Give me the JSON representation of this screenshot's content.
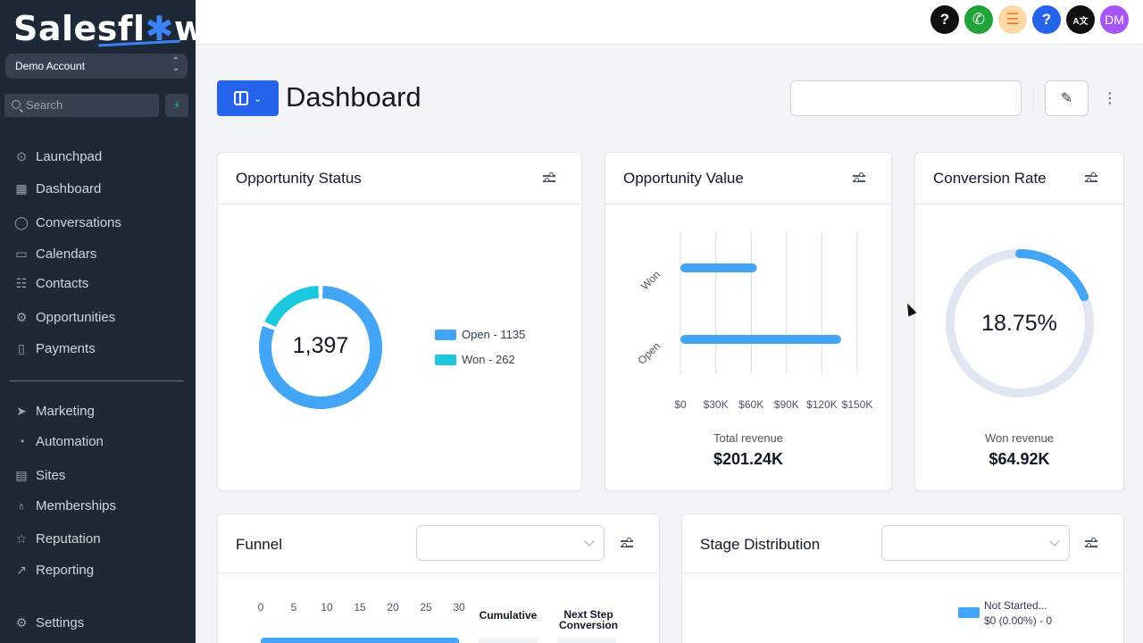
{
  "sidebar": {
    "logo_text": "Salesfl",
    "logo_gear": "✱",
    "logo_tail": "w",
    "account": "Demo Account",
    "search_placeholder": "Search",
    "items": [
      {
        "label": "Launchpad",
        "icon": "rocket-icon"
      },
      {
        "label": "Dashboard",
        "icon": "dashboard-icon"
      },
      {
        "label": "Conversations",
        "icon": "chat-icon"
      },
      {
        "label": "Calendars",
        "icon": "calendar-icon"
      },
      {
        "label": "Contacts",
        "icon": "contacts-icon"
      },
      {
        "label": "Opportunities",
        "icon": "opportunities-icon"
      },
      {
        "label": "Payments",
        "icon": "payments-icon"
      },
      {
        "label": "Marketing",
        "icon": "send-icon"
      },
      {
        "label": "Automation",
        "icon": "automation-icon"
      },
      {
        "label": "Sites",
        "icon": "sites-icon"
      },
      {
        "label": "Memberships",
        "icon": "memberships-icon"
      },
      {
        "label": "Reputation",
        "icon": "star-icon"
      },
      {
        "label": "Reporting",
        "icon": "chart-line-icon"
      },
      {
        "label": "Settings",
        "icon": "gear-icon"
      }
    ]
  },
  "topbar": {
    "buttons": [
      {
        "label": "?",
        "icon": "help-icon",
        "color": "#111111"
      },
      {
        "label": "✆",
        "icon": "phone-icon",
        "color": "#22a33a"
      },
      {
        "label": "☰",
        "icon": "list-icon",
        "color": "#fcd9a8"
      },
      {
        "label": "?",
        "icon": "help-circle-icon",
        "color": "#2563eb"
      },
      {
        "label": "A文",
        "icon": "translate-icon",
        "color": "#111111"
      },
      {
        "label": "DM",
        "icon": "avatar-icon",
        "color": "#a855f7"
      }
    ]
  },
  "header": {
    "title": "Dashboard",
    "search_value": ""
  },
  "opportunity_status": {
    "title": "Opportunity Status",
    "total": "1,397",
    "legend": [
      {
        "label": "Open - 1135",
        "color": "#42a5f5"
      },
      {
        "label": "Won - 262",
        "color": "#1cc8e0"
      }
    ]
  },
  "opportunity_value": {
    "title": "Opportunity Value",
    "total_label": "Total revenue",
    "total_value": "$201.24K"
  },
  "conversion_rate": {
    "title": "Conversion Rate",
    "value": "18.75%",
    "sub_label": "Won revenue",
    "sub_value": "$64.92K"
  },
  "funnel": {
    "title": "Funnel",
    "select_value": "",
    "col_cumulative": "Cumulative",
    "col_next_step_1": "Next Step",
    "col_next_step_2": "Conversion"
  },
  "stage_distribution": {
    "title": "Stage Distribution",
    "select_value": "",
    "legend_label": "Not Started...",
    "legend_value": "$0 (0.00%) - 0",
    "legend_color": "#42a5f5"
  },
  "chart_data": [
    {
      "type": "pie",
      "categories": [
        "Open",
        "Won"
      ],
      "values": [
        1135,
        262
      ],
      "colors": [
        "#42a5f5",
        "#1cc8e0"
      ]
    },
    {
      "type": "bar",
      "orientation": "horizontal",
      "categories": [
        "Won",
        "Open"
      ],
      "values": [
        64920,
        136320
      ],
      "xlim": [
        0,
        150000
      ],
      "xticks": [
        "$0",
        "$30K",
        "$60K",
        "$90K",
        "$120K",
        "$150K"
      ],
      "grid": true
    },
    {
      "type": "pie",
      "categories": [
        "Won",
        "Rest"
      ],
      "values": [
        18.75,
        81.25
      ],
      "colors": [
        "#42a5f5",
        "#e0e7f3"
      ]
    },
    {
      "type": "bar",
      "orientation": "horizontal",
      "xticks": [
        "0",
        "5",
        "10",
        "15",
        "20",
        "25",
        "30"
      ],
      "xlim": [
        0,
        30
      ]
    }
  ]
}
